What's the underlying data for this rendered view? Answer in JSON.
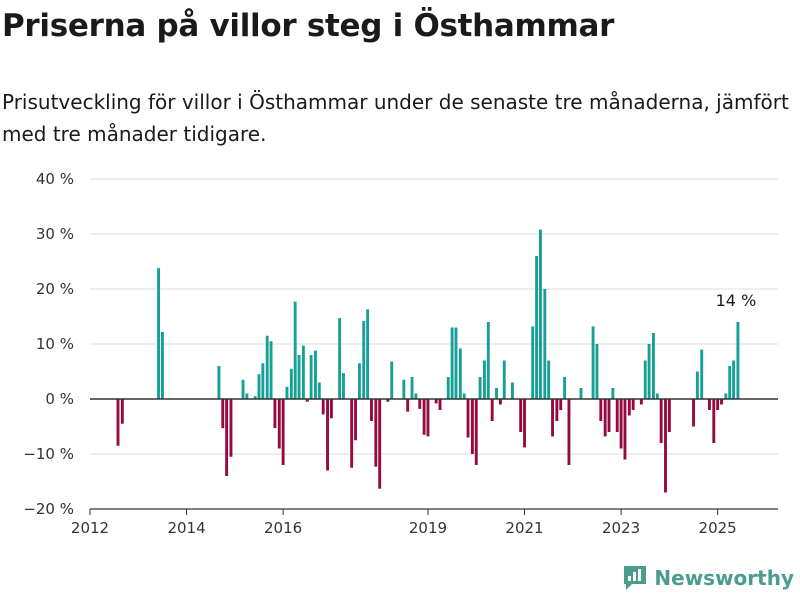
{
  "header": {
    "title": "Priserna på villor steg i Östhammar",
    "subtitle": "Prisutveckling för villor i Östhammar under de senaste tre månaderna, jämfört med tre månader tidigare."
  },
  "brand": {
    "name": "Newsworthy",
    "icon": "newsworthy-logo-icon",
    "color": "#4b9c8c"
  },
  "chart_data": {
    "type": "bar",
    "xlim": [
      2012.0,
      2026.25
    ],
    "ylim": [
      -20,
      40
    ],
    "y_ticks": [
      -20,
      -10,
      0,
      10,
      20,
      30,
      40
    ],
    "y_tick_labels": [
      "−20 %",
      "−10 %",
      "0 %",
      "10 %",
      "20 %",
      "30 %",
      "40 %"
    ],
    "x_ticks": [
      2012,
      2014,
      2016,
      2019,
      2021,
      2023,
      2025
    ],
    "x_tick_labels": [
      "2012",
      "2014",
      "2016",
      "2019",
      "2021",
      "2023",
      "2025"
    ],
    "grid": "horizontal",
    "colors": {
      "positive": "#17a096",
      "negative": "#950b41"
    },
    "annotation": {
      "text": "14 %",
      "x": 2025.4,
      "y": 14
    },
    "points": [
      [
        2012.58,
        -8.5
      ],
      [
        2012.67,
        -4.5
      ],
      [
        2013.42,
        23.8
      ],
      [
        2013.5,
        12.2
      ],
      [
        2014.67,
        6
      ],
      [
        2014.75,
        -5.3
      ],
      [
        2014.83,
        -14
      ],
      [
        2014.92,
        -10.5
      ],
      [
        2015.17,
        3.5
      ],
      [
        2015.25,
        1
      ],
      [
        2015.42,
        0.5
      ],
      [
        2015.5,
        4.5
      ],
      [
        2015.58,
        6.5
      ],
      [
        2015.67,
        11.5
      ],
      [
        2015.75,
        10.5
      ],
      [
        2015.83,
        -5.3
      ],
      [
        2015.92,
        -9
      ],
      [
        2016.0,
        -12
      ],
      [
        2016.08,
        2.2
      ],
      [
        2016.17,
        5.5
      ],
      [
        2016.25,
        17.7
      ],
      [
        2016.33,
        8
      ],
      [
        2016.42,
        9.7
      ],
      [
        2016.5,
        -0.5
      ],
      [
        2016.58,
        8
      ],
      [
        2016.67,
        8.8
      ],
      [
        2016.75,
        3
      ],
      [
        2016.83,
        -2.8
      ],
      [
        2016.92,
        -13
      ],
      [
        2017.0,
        -3.5
      ],
      [
        2017.17,
        14.7
      ],
      [
        2017.25,
        4.7
      ],
      [
        2017.42,
        -12.5
      ],
      [
        2017.5,
        -7.5
      ],
      [
        2017.58,
        6.5
      ],
      [
        2017.67,
        14.2
      ],
      [
        2017.75,
        16.3
      ],
      [
        2017.83,
        -4
      ],
      [
        2017.92,
        -12.3
      ],
      [
        2018.0,
        -16.3
      ],
      [
        2018.17,
        -0.5
      ],
      [
        2018.25,
        6.8
      ],
      [
        2018.5,
        3.5
      ],
      [
        2018.58,
        -2.3
      ],
      [
        2018.67,
        4
      ],
      [
        2018.75,
        1
      ],
      [
        2018.83,
        -1.8
      ],
      [
        2018.92,
        -6.5
      ],
      [
        2019.0,
        -6.8
      ],
      [
        2019.17,
        -0.8
      ],
      [
        2019.25,
        -2
      ],
      [
        2019.42,
        4
      ],
      [
        2019.5,
        13
      ],
      [
        2019.58,
        13
      ],
      [
        2019.67,
        9.2
      ],
      [
        2019.75,
        1
      ],
      [
        2019.83,
        -7
      ],
      [
        2019.92,
        -10
      ],
      [
        2020.0,
        -12
      ],
      [
        2020.08,
        4
      ],
      [
        2020.17,
        7
      ],
      [
        2020.25,
        14
      ],
      [
        2020.33,
        -4
      ],
      [
        2020.42,
        2
      ],
      [
        2020.5,
        -1
      ],
      [
        2020.58,
        7
      ],
      [
        2020.75,
        3
      ],
      [
        2020.92,
        -6
      ],
      [
        2021.0,
        -8.8
      ],
      [
        2021.17,
        13.2
      ],
      [
        2021.25,
        26
      ],
      [
        2021.33,
        30.8
      ],
      [
        2021.42,
        20
      ],
      [
        2021.5,
        7
      ],
      [
        2021.58,
        -6.8
      ],
      [
        2021.67,
        -4
      ],
      [
        2021.75,
        -2
      ],
      [
        2021.83,
        4
      ],
      [
        2021.92,
        -12
      ],
      [
        2022.17,
        2
      ],
      [
        2022.42,
        13.2
      ],
      [
        2022.5,
        10
      ],
      [
        2022.58,
        -4
      ],
      [
        2022.67,
        -6.8
      ],
      [
        2022.75,
        -6
      ],
      [
        2022.83,
        2
      ],
      [
        2022.92,
        -6
      ],
      [
        2023.0,
        -9
      ],
      [
        2023.08,
        -11
      ],
      [
        2023.17,
        -3
      ],
      [
        2023.25,
        -2
      ],
      [
        2023.42,
        -1
      ],
      [
        2023.5,
        7
      ],
      [
        2023.58,
        10
      ],
      [
        2023.67,
        12
      ],
      [
        2023.75,
        1
      ],
      [
        2023.83,
        -8
      ],
      [
        2023.92,
        -17
      ],
      [
        2024.0,
        -6
      ],
      [
        2024.5,
        -5
      ],
      [
        2024.58,
        5
      ],
      [
        2024.67,
        9
      ],
      [
        2024.83,
        -2
      ],
      [
        2024.92,
        -8
      ],
      [
        2025.0,
        -2
      ],
      [
        2025.08,
        -1
      ],
      [
        2025.17,
        1
      ],
      [
        2025.25,
        6
      ],
      [
        2025.33,
        7
      ],
      [
        2025.42,
        14
      ]
    ]
  }
}
